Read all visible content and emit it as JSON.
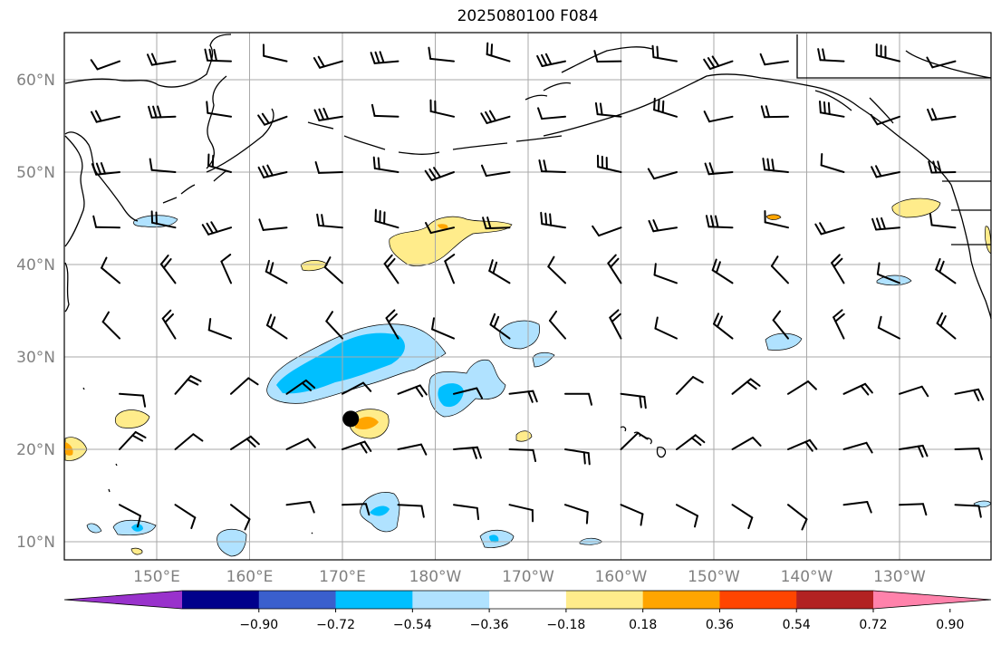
{
  "title": "2025080100 F084",
  "map": {
    "lat_labels": [
      "60°N",
      "50°N",
      "40°N",
      "30°N",
      "20°N",
      "10°N"
    ],
    "lon_labels": [
      "150°E",
      "160°E",
      "170°E",
      "180°W",
      "170°W",
      "160°W",
      "150°W",
      "140°W",
      "130°W"
    ],
    "marker": {
      "lon": 170.9,
      "lat": 23.3
    }
  },
  "colorbar": {
    "ticks": [
      "−0.90",
      "−0.72",
      "−0.54",
      "−0.36",
      "−0.18",
      "0.18",
      "0.36",
      "0.54",
      "0.72",
      "0.90"
    ],
    "colors": [
      "#9932cc",
      "#00008b",
      "#3a5fcd",
      "#00bfff",
      "#b0e2ff",
      "#ffffff",
      "#ffec8b",
      "#ffa500",
      "#ff4500",
      "#b22222",
      "#ff82ab"
    ]
  },
  "colors": {
    "grid": "#a9a9a9",
    "coast": "#000000",
    "barb": "#000000"
  }
}
